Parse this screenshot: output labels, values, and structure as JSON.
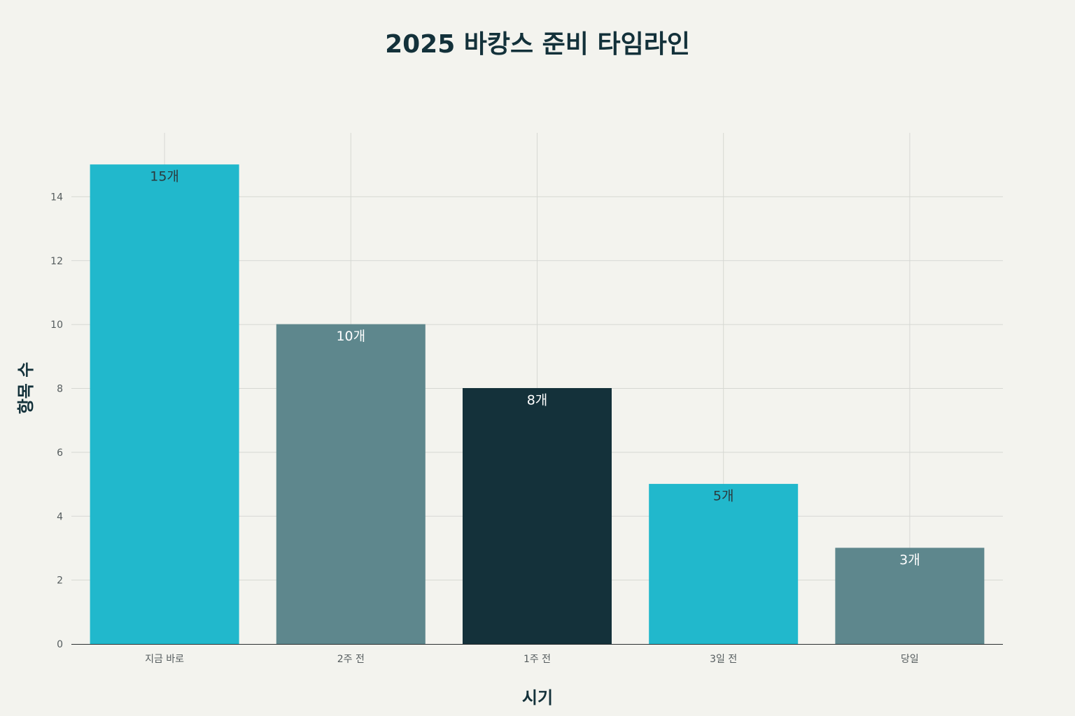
{
  "chart_data": {
    "type": "bar",
    "title": "2025 바캉스 준비 타임라인",
    "xlabel": "시기",
    "ylabel": "항목 수",
    "categories": [
      "지금 바로",
      "2주 전",
      "1주 전",
      "3일 전",
      "당일"
    ],
    "values": [
      15,
      10,
      8,
      5,
      3
    ],
    "data_labels": [
      "15개",
      "10개",
      "8개",
      "5개",
      "3개"
    ],
    "bar_colors": [
      "#21b8cc",
      "#5e878d",
      "#14313a",
      "#21b8cc",
      "#5e878d"
    ],
    "label_colors": [
      "#2b3a3e",
      "#ffffff",
      "#ffffff",
      "#2b3a3e",
      "#ffffff"
    ],
    "ylim": [
      0,
      16
    ],
    "yticks": [
      0,
      2,
      4,
      6,
      8,
      10,
      12,
      14
    ],
    "ytick_labels": [
      "0",
      "2",
      "4",
      "6",
      "8",
      "10",
      "12",
      "14"
    ],
    "grid": true,
    "legend": false
  }
}
